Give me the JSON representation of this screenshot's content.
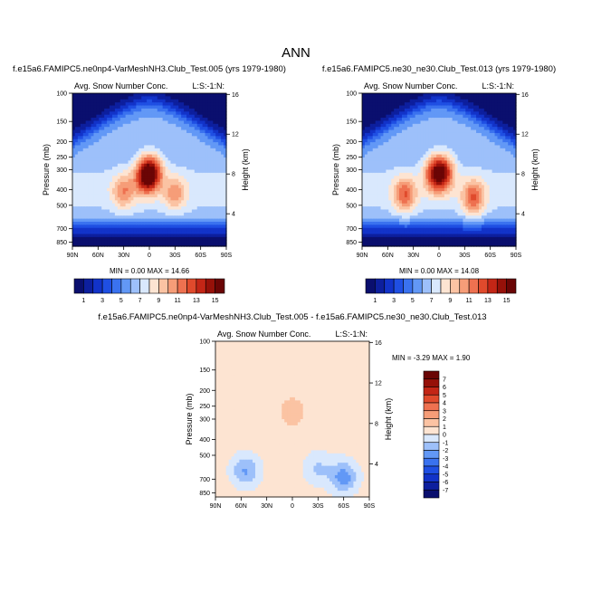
{
  "chart_data": {
    "type": "heatmap",
    "figure_title": "ANN",
    "panels": [
      {
        "id": "test",
        "title": "f.e15a6.FAMIPC5.ne0np4-VarMeshNH3.Club_Test.005 (yrs 1979-1980)",
        "left_label": "Avg. Snow Number Conc.",
        "right_label": "L:S:-1:N:",
        "xlabel": "",
        "ylabel": "Pressure (mb)",
        "ylabel_right": "Height (km)",
        "x_ticks": [
          "90N",
          "60N",
          "30N",
          "0",
          "30S",
          "60S",
          "90S"
        ],
        "y_ticks": [
          "100",
          "150",
          "200",
          "250",
          "300",
          "400",
          "500",
          "700",
          "850"
        ],
        "y_ticks_right": [
          "16",
          "12",
          "8",
          "4"
        ],
        "min": 0.0,
        "max": 14.66,
        "min_max_text": "MIN =  0.00  MAX = 14.66",
        "features": [
          {
            "lat": -3,
            "p": 310,
            "amp": 11.5
          },
          {
            "lat": 5,
            "p": 330,
            "amp": 10.5
          },
          {
            "lat": -30,
            "p": 420,
            "amp": 6.0
          },
          {
            "lat": 30,
            "p": 410,
            "amp": 6.5
          }
        ]
      },
      {
        "id": "control",
        "title": "f.e15a6.FAMIPC5.ne30_ne30.Club_Test.013 (yrs 1979-1980)",
        "left_label": "Avg. Snow Number Conc.",
        "right_label": "L:S:-1:N:",
        "xlabel": "",
        "ylabel": "Pressure (mb)",
        "ylabel_right": "Height (km)",
        "x_ticks": [
          "90N",
          "60N",
          "30N",
          "0",
          "30S",
          "60S",
          "90S"
        ],
        "y_ticks": [
          "100",
          "150",
          "200",
          "250",
          "300",
          "400",
          "500",
          "700",
          "850"
        ],
        "y_ticks_right": [
          "16",
          "12",
          "8",
          "4"
        ],
        "min": 0.0,
        "max": 14.08,
        "min_max_text": "MIN =  0.00  MAX = 14.08",
        "features": [
          {
            "lat": -5,
            "p": 310,
            "amp": 11.0
          },
          {
            "lat": 5,
            "p": 320,
            "amp": 10.0
          },
          {
            "lat": -40,
            "p": 450,
            "amp": 9.0
          },
          {
            "lat": 40,
            "p": 430,
            "amp": 8.5
          }
        ]
      },
      {
        "id": "difference",
        "title": "f.e15a6.FAMIPC5.ne0np4-VarMeshNH3.Club_Test.005 - f.e15a6.FAMIPC5.ne30_ne30.Club_Test.013",
        "left_label": "Avg. Snow Number Conc.",
        "right_label": "L:S:-1:N:",
        "xlabel": "",
        "ylabel": "Pressure (mb)",
        "ylabel_right": "Height (km)",
        "x_ticks": [
          "90N",
          "60N",
          "30N",
          "0",
          "30S",
          "60S",
          "90S"
        ],
        "y_ticks": [
          "100",
          "150",
          "200",
          "250",
          "300",
          "400",
          "500",
          "700",
          "850"
        ],
        "y_ticks_right": [
          "16",
          "12",
          "8",
          "4"
        ],
        "min": -3.29,
        "max": 1.9,
        "min_max_text": "MIN =  -3.29  MAX =   1.90",
        "background": 0.4,
        "features": [
          {
            "lat": -60,
            "p": 680,
            "amp": -3.0
          },
          {
            "lat": 55,
            "p": 620,
            "amp": -2.5
          },
          {
            "lat": 0,
            "p": 270,
            "amp": 1.2
          },
          {
            "lat": -30,
            "p": 600,
            "amp": -1.5
          }
        ]
      }
    ],
    "colorbar_main": {
      "labels": [
        "1",
        "3",
        "5",
        "7",
        "9",
        "11",
        "13",
        "15"
      ],
      "levels": [
        1,
        2,
        3,
        4,
        5,
        6,
        7,
        8,
        9,
        10,
        11,
        12,
        13,
        14,
        15
      ],
      "colors": [
        "#0a0f6e",
        "#0d1f9e",
        "#1233c9",
        "#1f4fe3",
        "#3a72ef",
        "#6298f6",
        "#9dc0fa",
        "#d9e8fd",
        "#fde4d2",
        "#fbc3a3",
        "#f69d78",
        "#ee7150",
        "#e04a2c",
        "#c32616",
        "#961109",
        "#6a0505"
      ]
    },
    "colorbar_diff": {
      "labels": [
        "7",
        "6",
        "5",
        "4",
        "3",
        "2",
        "1",
        "0",
        "-1",
        "-2",
        "-3",
        "-4",
        "-5",
        "-6",
        "-7"
      ],
      "levels": [
        -7,
        -6,
        -5,
        -4,
        -3,
        -2,
        -1,
        0,
        1,
        2,
        3,
        4,
        5,
        6,
        7
      ],
      "colors": [
        "#0a0f6e",
        "#0d1f9e",
        "#1233c9",
        "#1f4fe3",
        "#3a72ef",
        "#6298f6",
        "#9dc0fa",
        "#d9e8fd",
        "#fde4d2",
        "#fbc3a3",
        "#f69d78",
        "#ee7150",
        "#e04a2c",
        "#c32616",
        "#961109",
        "#6a0505"
      ]
    }
  }
}
